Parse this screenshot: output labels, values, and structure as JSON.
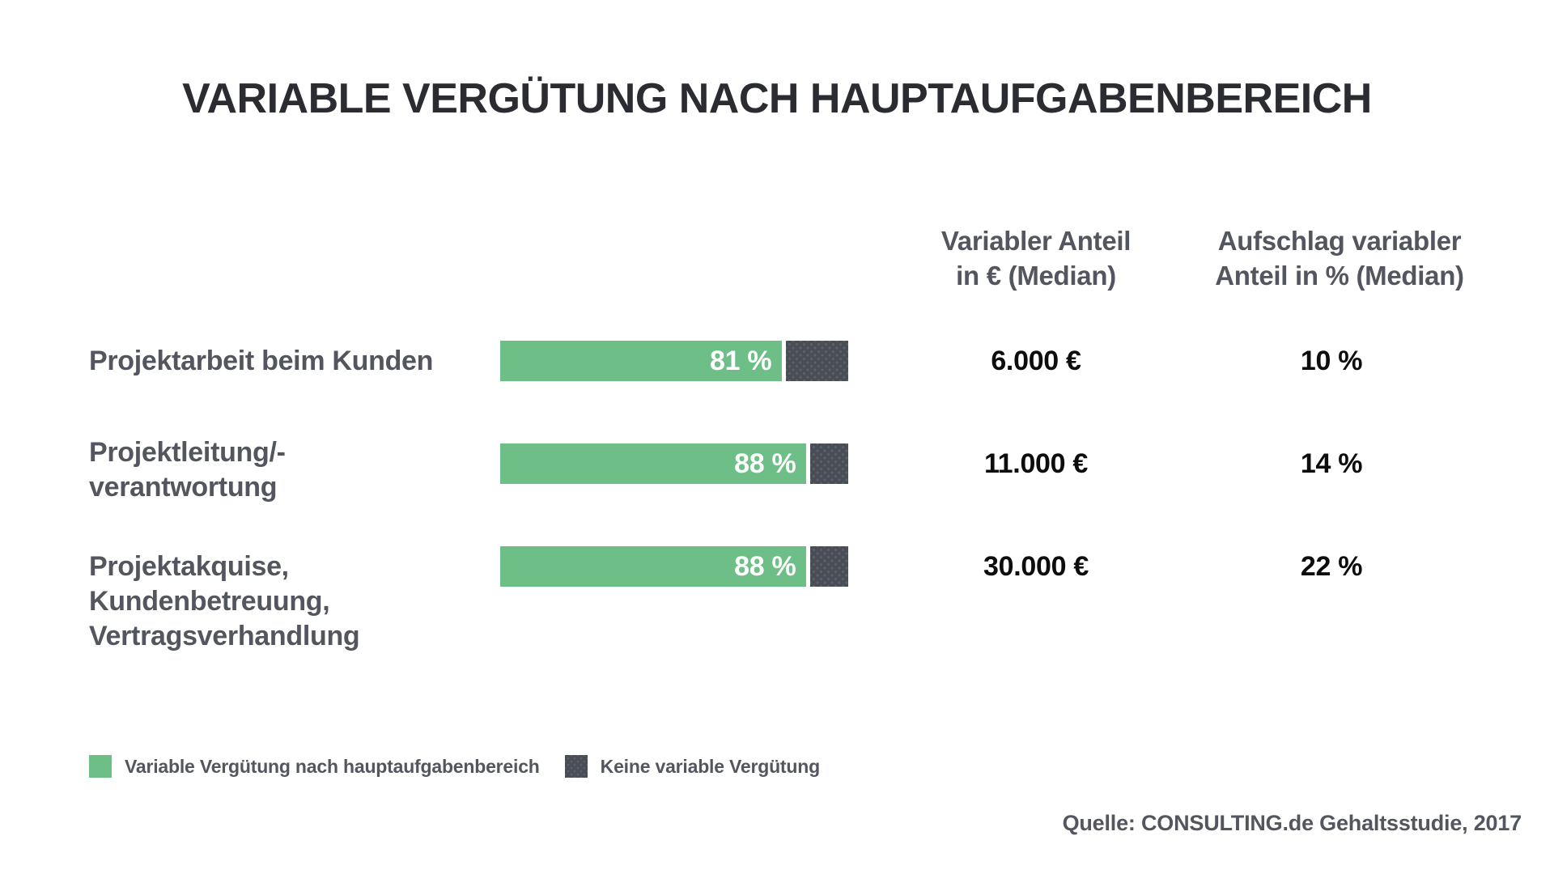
{
  "title": "VARIABLE VERGÜTUNG NACH HAUPTAUFGABENBEREICH",
  "columns": {
    "euro": {
      "line1": "Variabler Anteil",
      "line2": "in € (Median)"
    },
    "percent": {
      "line1": "Aufschlag variabler",
      "line2": "Anteil in % (Median)"
    }
  },
  "rows": [
    {
      "label_lines": [
        "Projektarbeit beim Kunden"
      ],
      "bar_pct": 81,
      "bar_label": "81 %",
      "euro": "6.000 €",
      "percent": "10 %"
    },
    {
      "label_lines": [
        "Projektleitung/-",
        "verantwortung"
      ],
      "bar_pct": 88,
      "bar_label": "88 %",
      "euro": "11.000 €",
      "percent": "14 %"
    },
    {
      "label_lines": [
        "Projektakquise,",
        "Kundenbetreuung,",
        "Vertragsverhandlung"
      ],
      "bar_pct": 88,
      "bar_label": "88 %",
      "euro": "30.000 €",
      "percent": "22 %"
    }
  ],
  "legend": [
    {
      "label": "Variable Vergütung nach hauptaufgabenbereich"
    },
    {
      "label": "Keine variable Vergütung"
    }
  ],
  "source": "Quelle: CONSULTING.de Gehaltsstudie, 2017",
  "colors": {
    "green": "#6dbe87",
    "dark": "#494d56",
    "heading": "#53565e",
    "title": "#2a2c32",
    "value": "#0d0d0d"
  },
  "chart_data": {
    "type": "bar",
    "orientation": "horizontal",
    "title": "VARIABLE VERGÜTUNG NACH HAUPTAUFGABENBEREICH",
    "categories": [
      "Projektarbeit beim Kunden",
      "Projektleitung/-verantwortung",
      "Projektakquise, Kundenbetreuung, Vertragsverhandlung"
    ],
    "series": [
      {
        "name": "Variable Vergütung nach hauptaufgabenbereich",
        "unit": "%",
        "values": [
          81,
          88,
          88
        ],
        "color": "#6dbe87"
      },
      {
        "name": "Keine variable Vergütung",
        "unit": "%",
        "values": [
          19,
          12,
          12
        ],
        "color": "#494d56"
      }
    ],
    "value_columns": [
      {
        "header": "Variabler Anteil in € (Median)",
        "values": [
          "6.000 €",
          "11.000 €",
          "30.000 €"
        ]
      },
      {
        "header": "Aufschlag variabler Anteil in % (Median)",
        "values": [
          "10 %",
          "14 %",
          "22 %"
        ]
      }
    ],
    "xlim": [
      0,
      100
    ],
    "grid": false,
    "legend_position": "bottom-left",
    "source": "Quelle: CONSULTING.de Gehaltsstudie, 2017"
  }
}
